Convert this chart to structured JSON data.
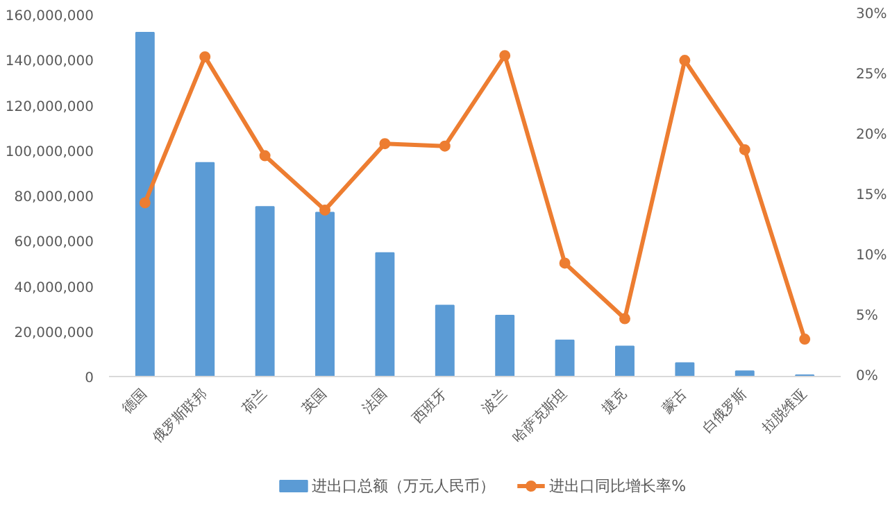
{
  "chart_data": {
    "type": "bar",
    "categories": [
      "德国",
      "俄罗斯联邦",
      "荷兰",
      "英国",
      "法国",
      "西班牙",
      "波兰",
      "哈萨克斯坦",
      "捷克",
      "蒙古",
      "白俄罗斯",
      "拉脱维亚"
    ],
    "series": [
      {
        "name": "进出口总额（万元人民币）",
        "color": "#5b9bd5",
        "values": [
          152000000,
          94500000,
          75000000,
          72500000,
          54600000,
          31400000,
          27000000,
          16000000,
          13300000,
          6000000,
          2400000,
          600000
        ]
      },
      {
        "name": "进出口同比增长率%",
        "color": "#ed7d31",
        "type": "line",
        "axis": "y2",
        "values": [
          14.4,
          26.5,
          18.3,
          13.8,
          19.3,
          19.1,
          26.6,
          9.4,
          4.8,
          26.2,
          18.8,
          3.1
        ]
      }
    ],
    "ylim": [
      0,
      160000000
    ],
    "yticks": [
      {
        "value": 0,
        "label": "0"
      },
      {
        "value": 20000000,
        "label": "20,000,000"
      },
      {
        "value": 40000000,
        "label": "40,000,000"
      },
      {
        "value": 60000000,
        "label": "60,000,000"
      },
      {
        "value": 80000000,
        "label": "80,000,000"
      },
      {
        "value": 100000000,
        "label": "100,000,000"
      },
      {
        "value": 120000000,
        "label": "120,000,000"
      },
      {
        "value": 140000000,
        "label": "140,000,000"
      },
      {
        "value": 160000000,
        "label": "160,000,000"
      }
    ],
    "y2lim": [
      0,
      30
    ],
    "y2ticks": [
      {
        "value": 0,
        "label": "0%"
      },
      {
        "value": 5,
        "label": "5%"
      },
      {
        "value": 10,
        "label": "10%"
      },
      {
        "value": 15,
        "label": "15%"
      },
      {
        "value": 20,
        "label": "20%"
      },
      {
        "value": 25,
        "label": "25%"
      },
      {
        "value": 30,
        "label": "30%"
      }
    ],
    "legend": "bottom",
    "marker": "circle"
  }
}
